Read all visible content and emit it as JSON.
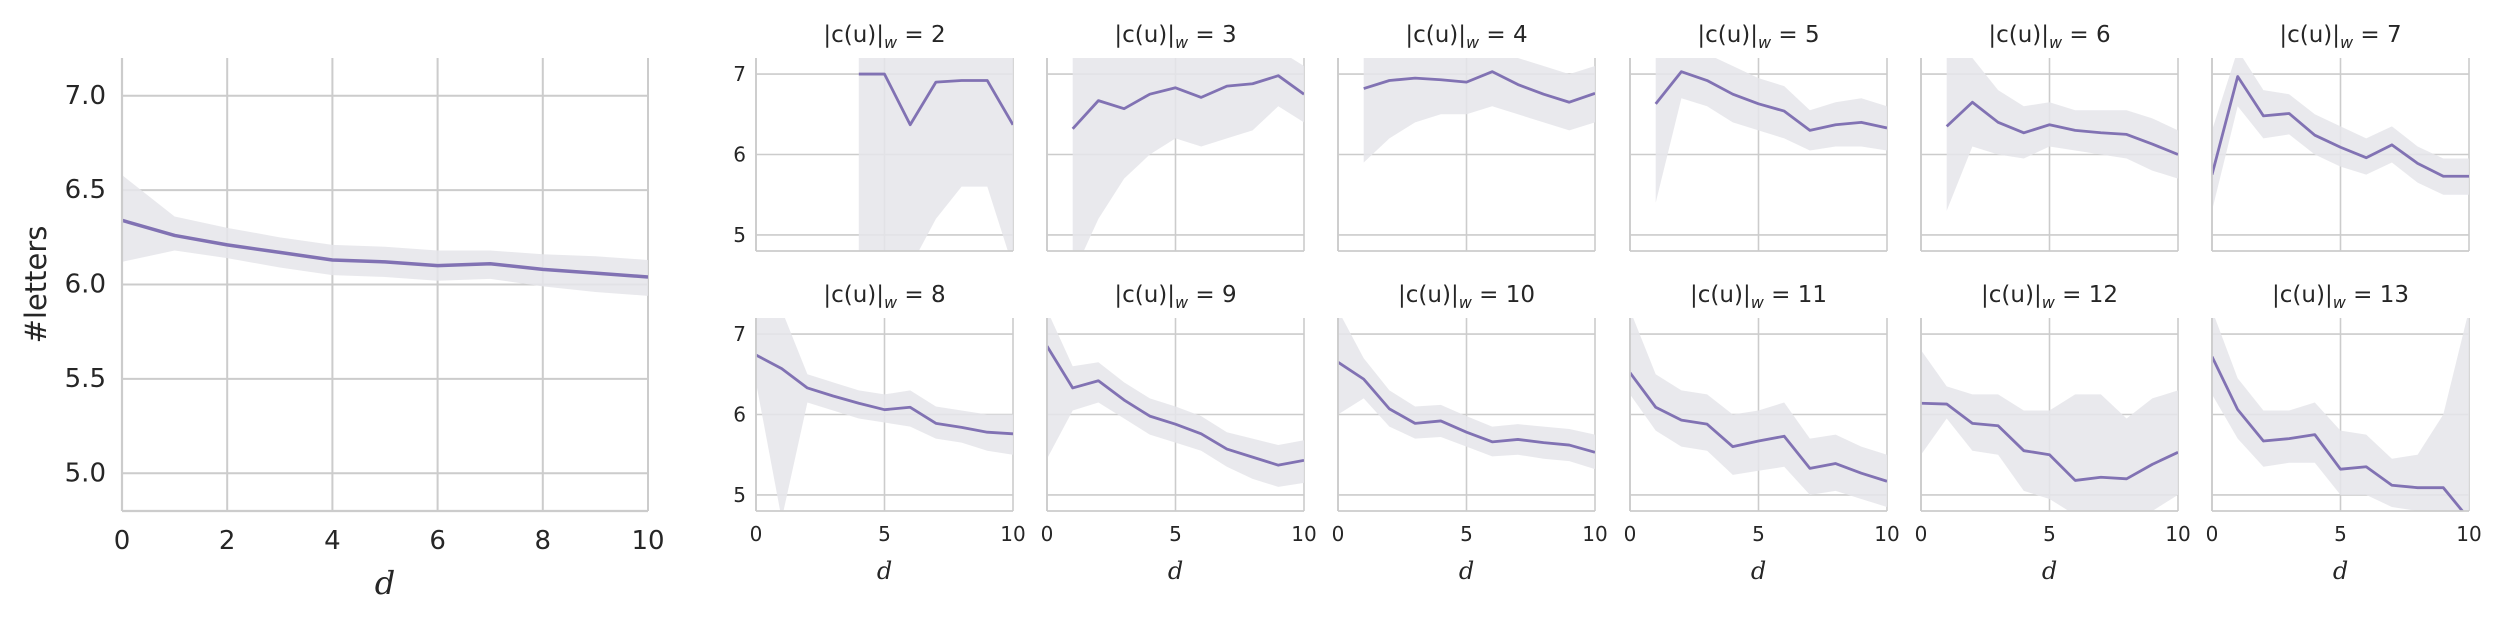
{
  "chart_data": [
    {
      "type": "line",
      "title": "",
      "xlabel": "d",
      "ylabel": "#letters",
      "xlim": [
        0,
        10
      ],
      "ylim": [
        4.8,
        7.2
      ],
      "xticks": [
        "0",
        "2",
        "4",
        "6",
        "8",
        "10"
      ],
      "yticks": [
        "5.0",
        "5.5",
        "6.0",
        "6.5",
        "7.0"
      ],
      "grid": true,
      "line_color": "#8172b3",
      "band_color": "#e5e5ea",
      "x": [
        0,
        1,
        2,
        3,
        4,
        5,
        6,
        7,
        8,
        9,
        10
      ],
      "values": [
        6.34,
        6.26,
        6.21,
        6.17,
        6.13,
        6.12,
        6.1,
        6.11,
        6.08,
        6.06,
        6.04
      ],
      "lower": [
        6.12,
        6.18,
        6.14,
        6.09,
        6.05,
        6.04,
        6.02,
        6.03,
        5.99,
        5.96,
        5.94
      ],
      "upper": [
        6.58,
        6.36,
        6.3,
        6.25,
        6.21,
        6.2,
        6.18,
        6.18,
        6.16,
        6.15,
        6.13
      ]
    },
    {
      "type": "small-multiples-line",
      "xlabel": "d",
      "xlim": [
        0,
        10
      ],
      "ylim": [
        4.8,
        7.2
      ],
      "xticks": [
        "0",
        "5",
        "10"
      ],
      "yticks": [
        "5",
        "6",
        "7"
      ],
      "grid": true,
      "line_color": "#8172b3",
      "band_color": "#e5e5ea",
      "panels": [
        {
          "title_lhs": "|c(u)|",
          "title_sub": "w",
          "title_rhs": "= 2",
          "x": [
            4,
            5,
            6,
            7,
            8,
            9,
            10
          ],
          "values": [
            7.0,
            7.0,
            6.37,
            6.9,
            6.92,
            6.92,
            6.37
          ],
          "lower": [
            4.5,
            4.5,
            4.6,
            5.2,
            5.6,
            5.6,
            4.6
          ],
          "upper": [
            7.3,
            7.3,
            7.3,
            7.3,
            7.3,
            7.3,
            7.3
          ]
        },
        {
          "title_lhs": "|c(u)|",
          "title_sub": "w",
          "title_rhs": "= 3",
          "x": [
            1,
            2,
            3,
            4,
            5,
            6,
            7,
            8,
            9,
            10
          ],
          "values": [
            6.32,
            6.67,
            6.57,
            6.75,
            6.83,
            6.71,
            6.85,
            6.88,
            6.98,
            6.75
          ],
          "lower": [
            4.5,
            5.2,
            5.7,
            6.0,
            6.2,
            6.1,
            6.2,
            6.3,
            6.6,
            6.4
          ],
          "upper": [
            7.3,
            7.3,
            7.3,
            7.3,
            7.3,
            7.3,
            7.3,
            7.3,
            7.3,
            7.1
          ]
        },
        {
          "title_lhs": "|c(u)|",
          "title_sub": "w",
          "title_rhs": "= 4",
          "x": [
            1,
            2,
            3,
            4,
            5,
            6,
            7,
            8,
            9,
            10
          ],
          "values": [
            6.82,
            6.92,
            6.95,
            6.93,
            6.9,
            7.03,
            6.87,
            6.75,
            6.65,
            6.76
          ],
          "lower": [
            5.9,
            6.2,
            6.4,
            6.5,
            6.5,
            6.6,
            6.5,
            6.4,
            6.3,
            6.4
          ],
          "upper": [
            7.2,
            7.2,
            7.2,
            7.2,
            7.2,
            7.3,
            7.2,
            7.1,
            7.0,
            7.1
          ]
        },
        {
          "title_lhs": "|c(u)|",
          "title_sub": "w",
          "title_rhs": "= 5",
          "x": [
            1,
            2,
            3,
            4,
            5,
            6,
            7,
            8,
            9,
            10
          ],
          "values": [
            6.63,
            7.03,
            6.92,
            6.75,
            6.63,
            6.54,
            6.3,
            6.37,
            6.4,
            6.33
          ],
          "lower": [
            5.4,
            6.7,
            6.6,
            6.4,
            6.3,
            6.2,
            6.05,
            6.1,
            6.1,
            6.05
          ],
          "upper": [
            7.3,
            7.3,
            7.25,
            7.1,
            6.95,
            6.85,
            6.55,
            6.65,
            6.7,
            6.6
          ]
        },
        {
          "title_lhs": "|c(u)|",
          "title_sub": "w",
          "title_rhs": "= 6",
          "x": [
            1,
            2,
            3,
            4,
            5,
            6,
            7,
            8,
            9,
            10
          ],
          "values": [
            6.35,
            6.65,
            6.4,
            6.27,
            6.37,
            6.3,
            6.27,
            6.25,
            6.13,
            6.0
          ],
          "lower": [
            5.3,
            6.1,
            6.0,
            5.95,
            6.1,
            6.05,
            6.0,
            5.95,
            5.8,
            5.7
          ],
          "upper": [
            7.3,
            7.2,
            6.8,
            6.6,
            6.65,
            6.55,
            6.55,
            6.55,
            6.45,
            6.3
          ]
        },
        {
          "title_lhs": "|c(u)|",
          "title_sub": "w",
          "title_rhs": "= 7",
          "x": [
            0,
            1,
            2,
            3,
            4,
            5,
            6,
            7,
            8,
            9,
            10
          ],
          "values": [
            5.75,
            6.97,
            6.48,
            6.51,
            6.24,
            6.09,
            5.96,
            6.12,
            5.89,
            5.73,
            5.73
          ],
          "lower": [
            5.3,
            6.6,
            6.2,
            6.25,
            6.0,
            5.85,
            5.75,
            5.9,
            5.65,
            5.5,
            5.5
          ],
          "upper": [
            6.3,
            7.3,
            6.8,
            6.75,
            6.5,
            6.35,
            6.2,
            6.35,
            6.1,
            5.95,
            5.95
          ]
        },
        {
          "title_lhs": "|c(u)|",
          "title_sub": "w",
          "title_rhs": "= 8",
          "x": [
            0,
            1,
            2,
            3,
            4,
            5,
            6,
            7,
            8,
            9,
            10
          ],
          "values": [
            6.74,
            6.57,
            6.33,
            6.23,
            6.14,
            6.06,
            6.09,
            5.89,
            5.84,
            5.78,
            5.76
          ],
          "lower": [
            6.4,
            4.7,
            6.15,
            6.05,
            5.95,
            5.9,
            5.85,
            5.7,
            5.65,
            5.55,
            5.5
          ],
          "upper": [
            7.3,
            7.3,
            6.5,
            6.4,
            6.3,
            6.25,
            6.3,
            6.1,
            6.05,
            6.0,
            6.0
          ]
        },
        {
          "title_lhs": "|c(u)|",
          "title_sub": "w",
          "title_rhs": "= 9",
          "x": [
            0,
            1,
            2,
            3,
            4,
            5,
            6,
            7,
            8,
            9,
            10
          ],
          "values": [
            6.85,
            6.33,
            6.42,
            6.18,
            5.98,
            5.88,
            5.76,
            5.57,
            5.47,
            5.37,
            5.43
          ],
          "lower": [
            5.45,
            6.05,
            6.15,
            5.95,
            5.75,
            5.65,
            5.55,
            5.35,
            5.2,
            5.1,
            5.15
          ],
          "upper": [
            7.3,
            6.6,
            6.65,
            6.4,
            6.2,
            6.1,
            5.98,
            5.78,
            5.7,
            5.62,
            5.68
          ]
        },
        {
          "title_lhs": "|c(u)|",
          "title_sub": "w",
          "title_rhs": "= 10",
          "x": [
            0,
            1,
            2,
            3,
            4,
            5,
            6,
            7,
            8,
            9,
            10
          ],
          "values": [
            6.65,
            6.44,
            6.07,
            5.89,
            5.92,
            5.78,
            5.66,
            5.69,
            5.65,
            5.62,
            5.53
          ],
          "lower": [
            6.0,
            6.2,
            5.85,
            5.7,
            5.72,
            5.6,
            5.48,
            5.5,
            5.45,
            5.42,
            5.32
          ],
          "upper": [
            7.3,
            6.7,
            6.3,
            6.1,
            6.12,
            5.98,
            5.85,
            5.88,
            5.85,
            5.82,
            5.75
          ]
        },
        {
          "title_lhs": "|c(u)|",
          "title_sub": "w",
          "title_rhs": "= 11",
          "x": [
            0,
            1,
            2,
            3,
            4,
            5,
            6,
            7,
            8,
            9,
            10
          ],
          "values": [
            6.52,
            6.09,
            5.93,
            5.88,
            5.6,
            5.67,
            5.73,
            5.33,
            5.39,
            5.27,
            5.17
          ],
          "lower": [
            6.25,
            5.8,
            5.6,
            5.55,
            5.25,
            5.3,
            5.35,
            5.0,
            5.05,
            4.95,
            4.85
          ],
          "upper": [
            7.3,
            6.5,
            6.3,
            6.25,
            6.0,
            6.05,
            6.15,
            5.7,
            5.75,
            5.6,
            5.5
          ]
        },
        {
          "title_lhs": "|c(u)|",
          "title_sub": "w",
          "title_rhs": "= 12",
          "x": [
            0,
            1,
            2,
            3,
            4,
            5,
            6,
            7,
            8,
            9,
            10
          ],
          "values": [
            6.14,
            6.13,
            5.89,
            5.86,
            5.55,
            5.5,
            5.18,
            5.22,
            5.2,
            5.38,
            5.53
          ],
          "lower": [
            5.5,
            5.95,
            5.55,
            5.5,
            5.05,
            4.95,
            4.75,
            4.75,
            4.7,
            4.8,
            5.0
          ],
          "upper": [
            6.8,
            6.35,
            6.25,
            6.25,
            6.05,
            6.05,
            6.25,
            6.25,
            5.95,
            6.2,
            6.3
          ]
        },
        {
          "title_lhs": "|c(u)|",
          "title_sub": "w",
          "title_rhs": "= 13",
          "x": [
            0,
            1,
            2,
            3,
            4,
            5,
            6,
            7,
            8,
            9,
            10
          ],
          "values": [
            6.72,
            6.06,
            5.67,
            5.7,
            5.75,
            5.32,
            5.35,
            5.12,
            5.09,
            5.09,
            4.7
          ],
          "lower": [
            6.25,
            5.7,
            5.35,
            5.4,
            5.4,
            5.0,
            5.0,
            4.85,
            4.8,
            4.8,
            4.5
          ],
          "upper": [
            7.3,
            6.45,
            6.05,
            6.05,
            6.15,
            5.8,
            5.75,
            5.45,
            5.5,
            6.0,
            7.3
          ]
        }
      ]
    }
  ]
}
